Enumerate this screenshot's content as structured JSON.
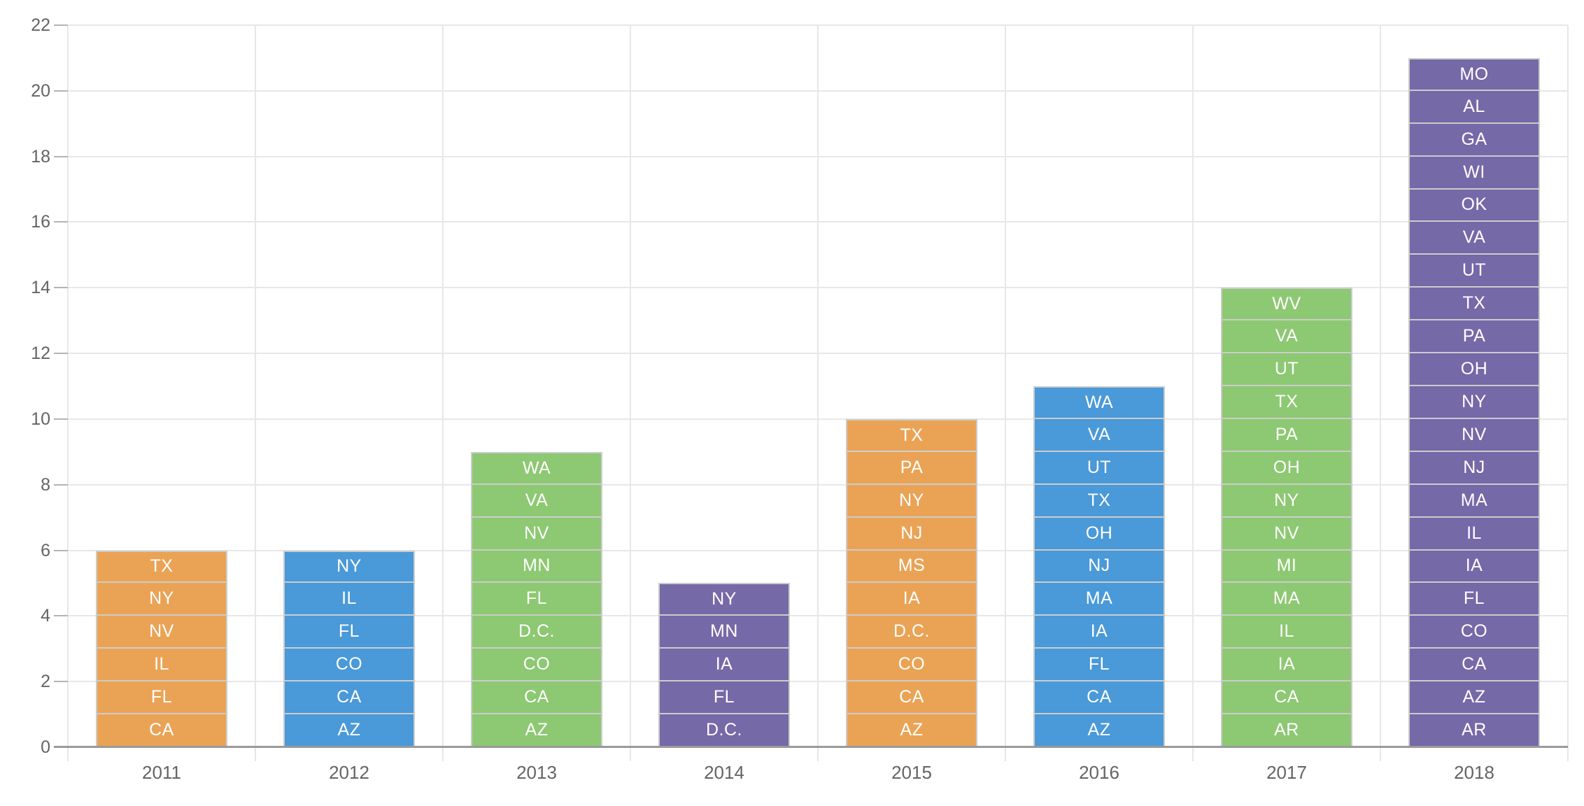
{
  "chart_data": {
    "type": "bar",
    "stacked": true,
    "title": "",
    "xlabel": "",
    "ylabel": "",
    "ylim": [
      0,
      22
    ],
    "ytick_interval": 2,
    "ytick_labels": [
      "0",
      "2",
      "4",
      "6",
      "8",
      "10",
      "12",
      "14",
      "16",
      "18",
      "20",
      "22"
    ],
    "grid": true,
    "legend": null,
    "unit_value_per_segment": 1,
    "categories": [
      "2011",
      "2012",
      "2013",
      "2014",
      "2015",
      "2016",
      "2017",
      "2018"
    ],
    "bars": [
      {
        "category": "2011",
        "total": 6,
        "color": "#EAA355",
        "segments_top_to_bottom": [
          "TX",
          "NY",
          "NV",
          "IL",
          "FL",
          "CA"
        ]
      },
      {
        "category": "2012",
        "total": 6,
        "color": "#4A99D8",
        "segments_top_to_bottom": [
          "NY",
          "IL",
          "FL",
          "CO",
          "CA",
          "AZ"
        ]
      },
      {
        "category": "2013",
        "total": 9,
        "color": "#8DC872",
        "segments_top_to_bottom": [
          "WA",
          "VA",
          "NV",
          "MN",
          "FL",
          "D.C.",
          "CO",
          "CA",
          "AZ"
        ]
      },
      {
        "category": "2014",
        "total": 5,
        "color": "#7569A8",
        "segments_top_to_bottom": [
          "NY",
          "MN",
          "IA",
          "FL",
          "D.C."
        ]
      },
      {
        "category": "2015",
        "total": 10,
        "color": "#EAA355",
        "segments_top_to_bottom": [
          "TX",
          "PA",
          "NY",
          "NJ",
          "MS",
          "IA",
          "D.C.",
          "CO",
          "CA",
          "AZ"
        ]
      },
      {
        "category": "2016",
        "total": 11,
        "color": "#4A99D8",
        "segments_top_to_bottom": [
          "WA",
          "VA",
          "UT",
          "TX",
          "OH",
          "NJ",
          "MA",
          "IA",
          "FL",
          "CA",
          "AZ"
        ]
      },
      {
        "category": "2017",
        "total": 14,
        "color": "#8DC872",
        "segments_top_to_bottom": [
          "WV",
          "VA",
          "UT",
          "TX",
          "PA",
          "OH",
          "NY",
          "NV",
          "MI",
          "MA",
          "IL",
          "IA",
          "CA",
          "AR"
        ]
      },
      {
        "category": "2018",
        "total": 21,
        "color": "#7569A8",
        "segments_top_to_bottom": [
          "MO",
          "AL",
          "GA",
          "WI",
          "OK",
          "VA",
          "UT",
          "TX",
          "PA",
          "OH",
          "NY",
          "NV",
          "NJ",
          "MA",
          "IL",
          "IA",
          "FL",
          "CO",
          "CA",
          "AZ",
          "AR"
        ]
      }
    ],
    "colors": {
      "segment_border": "#cccccc",
      "segment_label": "#ffffff",
      "gridline": "#e7e7e7",
      "axis_line": "#9a9a9a",
      "tick": "#b4b4b4",
      "tick_label": "#646464",
      "background": "#ffffff"
    }
  }
}
